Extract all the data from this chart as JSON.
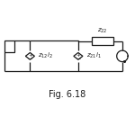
{
  "title": "Fig. 6.18",
  "title_fontsize": 7,
  "line_color": "#1a1a1a",
  "line_width": 0.9,
  "bg_color": "#ffffff",
  "z22_label": "$z_{22}$",
  "z12_label": "$z_{12}i_2$",
  "z21_label": "$z_{21}i_1$",
  "figsize": [
    1.5,
    1.5
  ],
  "dpi": 100
}
